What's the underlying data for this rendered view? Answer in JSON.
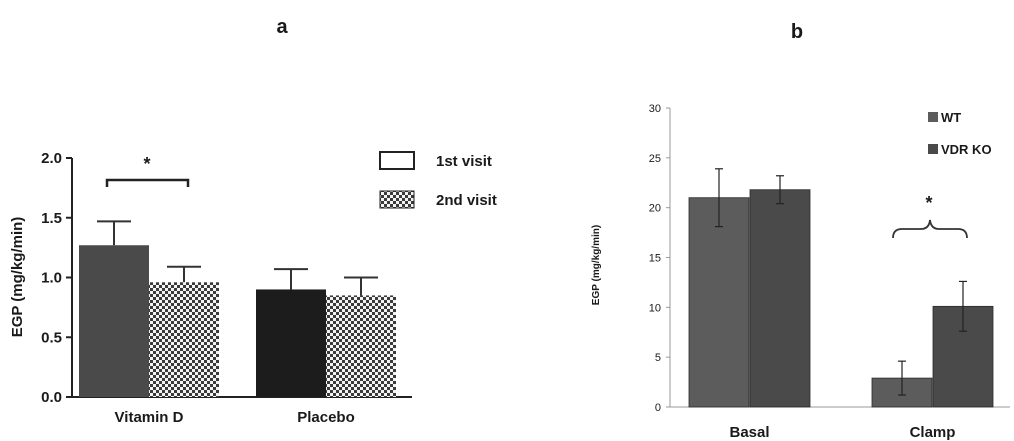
{
  "chart_data": [
    {
      "panel_label": "a",
      "type": "bar",
      "categories": [
        "Vitamin D",
        "Placebo"
      ],
      "ylabel": "EGP (mg/kg/min)",
      "ylim": [
        0,
        2.0
      ],
      "yticks": [
        "0.0",
        "0.5",
        "1.0",
        "1.5",
        "2.0"
      ],
      "series": [
        {
          "name": "1st visit",
          "values": [
            1.27,
            0.9
          ],
          "errors": [
            0.2,
            0.17
          ]
        },
        {
          "name": "2nd visit",
          "values": [
            0.96,
            0.85
          ],
          "errors": [
            0.13,
            0.15
          ]
        }
      ],
      "bar_fills": [
        [
          "#4a4a4a",
          "pattern"
        ],
        [
          "#1c1c1c",
          "pattern"
        ]
      ],
      "legend_placement": "top-right",
      "annotations": [
        {
          "text": "*",
          "between": [
            "Vitamin D 1st visit",
            "Vitamin D 2nd visit"
          ]
        }
      ]
    },
    {
      "panel_label": "b",
      "type": "bar",
      "categories": [
        "Basal",
        "Clamp"
      ],
      "ylabel": "EGP (mg/kg/min)",
      "ylim": [
        0,
        30
      ],
      "yticks": [
        "0",
        "5",
        "10",
        "15",
        "20",
        "25",
        "30"
      ],
      "series": [
        {
          "name": "WT",
          "values": [
            21.0,
            2.9
          ],
          "errors": [
            2.9,
            1.7
          ],
          "color": "#5c5c5c"
        },
        {
          "name": "VDR KO",
          "values": [
            21.8,
            10.1
          ],
          "errors": [
            1.4,
            2.5
          ],
          "color": "#4a4a4a"
        }
      ],
      "legend_placement": "top-right",
      "annotations": [
        {
          "text": "*",
          "between": [
            "Clamp WT",
            "Clamp VDR KO"
          ]
        }
      ]
    }
  ]
}
